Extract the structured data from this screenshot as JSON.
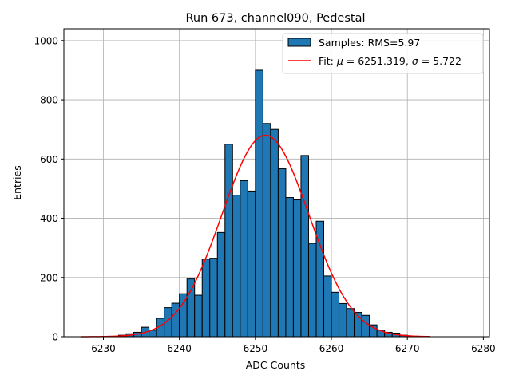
{
  "chart_data": {
    "type": "bar",
    "title": "Run 673, channel090, Pedestal",
    "xlabel": "ADC Counts",
    "ylabel": "Entries",
    "xlim": [
      6224.8,
      6280.8
    ],
    "ylim": [
      0,
      1040
    ],
    "grid": true,
    "legend_placement": "top-right",
    "x_ticks": [
      6230,
      6240,
      6250,
      6260,
      6270,
      6280
    ],
    "y_ticks": [
      0,
      200,
      400,
      600,
      800,
      1000
    ],
    "bin_width": 1,
    "series": [
      {
        "name": "Samples: RMS=5.97",
        "kind": "histogram",
        "color": "#1f77b4",
        "edgecolor": "#000000",
        "bin_edges": [
          6232,
          6233,
          6234,
          6235,
          6236,
          6237,
          6238,
          6239,
          6240,
          6241,
          6242,
          6243,
          6244,
          6245,
          6246,
          6247,
          6248,
          6249,
          6250,
          6251,
          6252,
          6253,
          6254,
          6255,
          6256,
          6257,
          6258,
          6259,
          6260,
          6261,
          6262,
          6263,
          6264,
          6265,
          6266,
          6267,
          6268,
          6269,
          6270
        ],
        "counts": [
          5,
          10,
          15,
          32,
          22,
          62,
          98,
          113,
          145,
          195,
          140,
          262,
          265,
          352,
          650,
          478,
          527,
          492,
          900,
          720,
          700,
          567,
          470,
          462,
          612,
          315,
          390,
          205,
          150,
          112,
          95,
          82,
          72,
          40,
          22,
          15,
          12,
          5
        ]
      },
      {
        "name": "Fit: μ = 6251.319, σ = 5.722",
        "kind": "gaussian-fit",
        "color": "#ff0000",
        "mu": 6251.319,
        "sigma": 5.722,
        "amplitude": 680,
        "x_range": [
          6227,
          6273
        ]
      }
    ],
    "legend": {
      "samples_prefix": "Samples: RMS=5.97",
      "fit_prefix": "Fit: ",
      "mu_symbol": "μ",
      "mu_text": " = 6251.319, ",
      "sigma_symbol": "σ",
      "sigma_text": " = 5.722"
    }
  }
}
